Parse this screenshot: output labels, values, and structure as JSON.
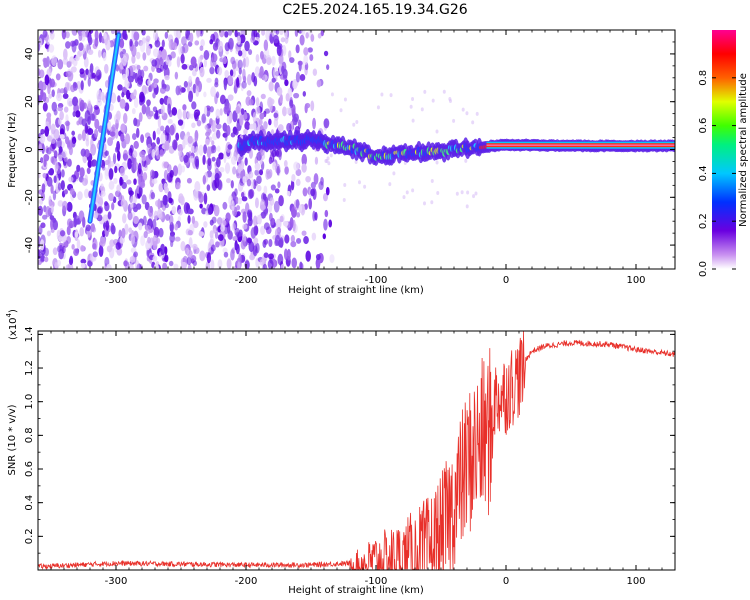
{
  "title": "C2E5.2024.165.19.34.G26",
  "chart_data": [
    {
      "type": "heatmap",
      "title": "C2E5.2024.165.19.34.G26",
      "xlabel": "Height of straight line (km)",
      "ylabel": "Frequency (Hz)",
      "xlim": [
        -360,
        130
      ],
      "ylim": [
        -50,
        50
      ],
      "xticks": [
        -300,
        -200,
        -100,
        0,
        100
      ],
      "yticks": [
        -40,
        -20,
        0,
        20,
        40
      ],
      "colorbar": {
        "label": "Normalized spectral amplitude",
        "range": [
          0,
          1
        ],
        "ticks": [
          "0.0",
          "0.2",
          "0.4",
          "0.6",
          "0.8"
        ],
        "colormap": "rainbow (white-purple-blue-cyan-green-yellow-red-magenta)"
      },
      "features": {
        "noise_region_x": [
          -360,
          -140
        ],
        "central_streak": [
          {
            "x": -200,
            "f": 3
          },
          {
            "x": -150,
            "f": 4
          },
          {
            "x": -120,
            "f": 1
          },
          {
            "x": -100,
            "f": -3
          },
          {
            "x": -80,
            "f": -2
          },
          {
            "x": -60,
            "f": -1
          },
          {
            "x": -40,
            "f": 0
          },
          {
            "x": -20,
            "f": 1
          },
          {
            "x": 0,
            "f": 2
          },
          {
            "x": 50,
            "f": 1.5
          },
          {
            "x": 100,
            "f": 1.5
          },
          {
            "x": 130,
            "f": 1.5
          }
        ],
        "diagonal_line": [
          {
            "x": -320,
            "f": -30
          },
          {
            "x": -298,
            "f": 48
          }
        ]
      }
    },
    {
      "type": "line",
      "xlabel": "Height of straight line (km)",
      "ylabel": "SNR (10 * v/v)",
      "multiplier": "(x10",
      "multiplier_exp": "4",
      "xlim": [
        -360,
        130
      ],
      "ylim": [
        0,
        1.42
      ],
      "xticks": [
        -300,
        -200,
        -100,
        0,
        100
      ],
      "yticks": [
        "0.2",
        "0.4",
        "0.6",
        "0.8",
        "1.0",
        "1.2",
        "1.4"
      ],
      "series": [
        {
          "color": "#e8302a",
          "x": [
            -360,
            -300,
            -200,
            -150,
            -120,
            -110,
            -100,
            -80,
            -60,
            -50,
            -40,
            -30,
            -20,
            -10,
            0,
            10,
            20,
            30,
            50,
            80,
            100,
            130
          ],
          "y": [
            0.02,
            0.04,
            0.03,
            0.03,
            0.04,
            0.08,
            0.12,
            0.15,
            0.25,
            0.35,
            0.55,
            0.8,
            0.95,
            1.05,
            1.1,
            1.2,
            1.3,
            1.33,
            1.35,
            1.34,
            1.31,
            1.28
          ]
        }
      ]
    }
  ]
}
